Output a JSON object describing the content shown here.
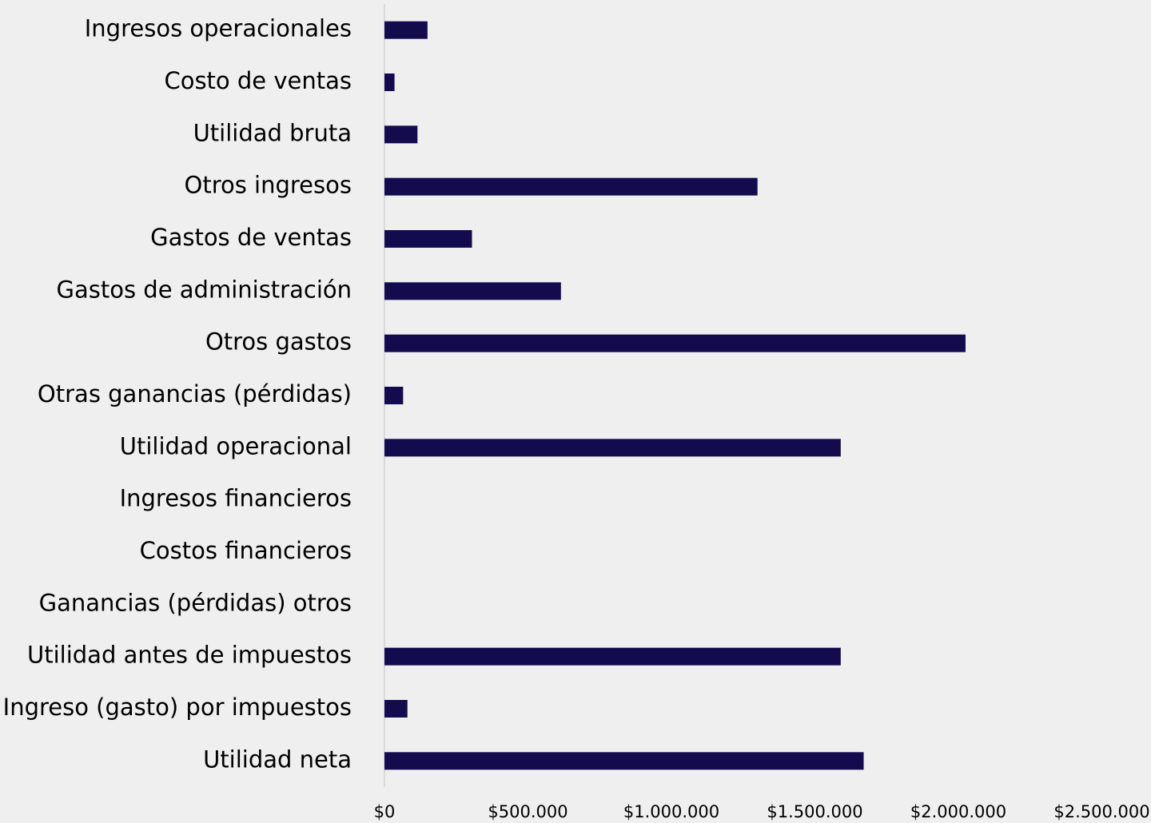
{
  "chart_data": {
    "type": "barh",
    "categories": [
      "Ingresos operacionales",
      "Costo de ventas",
      "Utilidad bruta",
      "Otros ingresos",
      "Gastos de ventas",
      "Gastos de administración",
      "Otros gastos",
      "Otras ganancias (pérdidas)",
      "Utilidad operacional",
      "Ingresos financieros",
      "Costos financieros",
      "Ganancias (pérdidas) otros",
      "Utilidad antes de impuestos",
      "Ingreso (gasto) por impuestos",
      "Utilidad neta"
    ],
    "values": [
      150000,
      35000,
      115000,
      1300000,
      305000,
      615000,
      2025000,
      65000,
      1590000,
      0,
      0,
      0,
      1590000,
      80000,
      1670000
    ],
    "color": "#140a4e",
    "xlim": [
      0,
      2500000
    ],
    "xticks": [
      {
        "value": 0,
        "label": "$0"
      },
      {
        "value": 500000,
        "label": "$500.000"
      },
      {
        "value": 1000000,
        "label": "$1.000.000"
      },
      {
        "value": 1500000,
        "label": "$1.500.000"
      },
      {
        "value": 2000000,
        "label": "$2.000.000"
      },
      {
        "value": 2500000,
        "label": "$2.500.000"
      }
    ],
    "grid": false
  }
}
